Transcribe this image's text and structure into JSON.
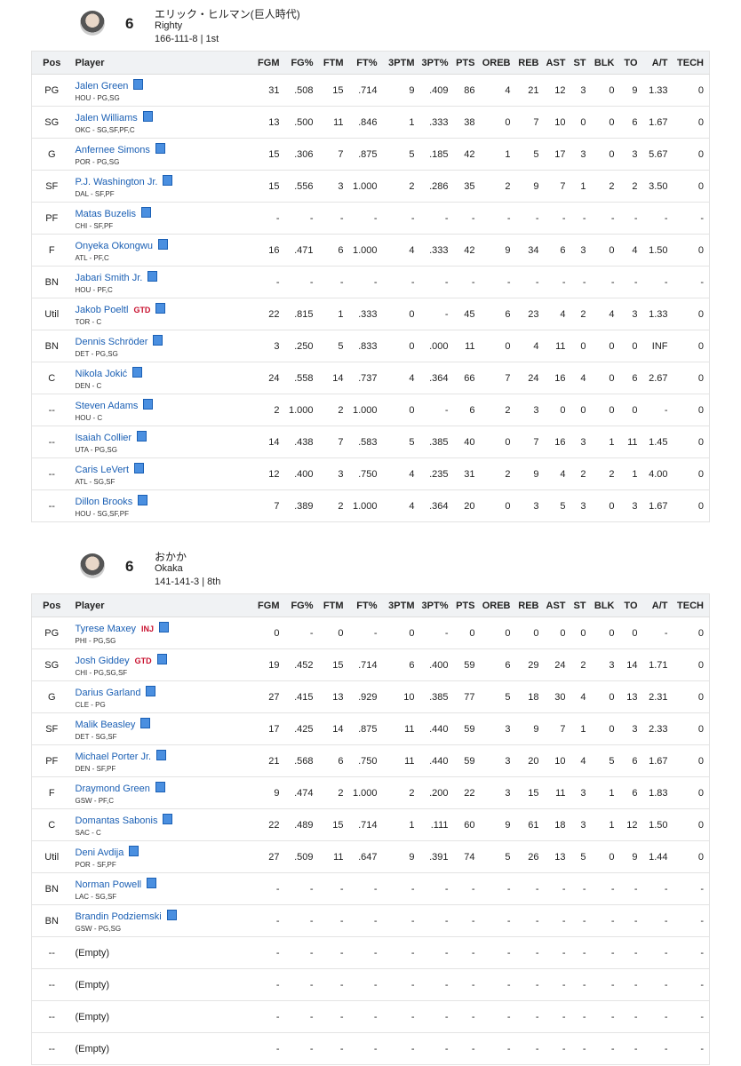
{
  "columns": [
    "Pos",
    "Player",
    "FGM",
    "FG%",
    "FTM",
    "FT%",
    "3PTM",
    "3PT%",
    "PTS",
    "OREB",
    "REB",
    "AST",
    "ST",
    "BLK",
    "TO",
    "A/T",
    "TECH"
  ],
  "teams": [
    {
      "manager": "エリック・ヒルマン(巨人時代)",
      "score": 6,
      "team_name": "Righty",
      "record": "166-111-8 | 1st",
      "rows": [
        {
          "pos": "PG",
          "name": "Jalen Green",
          "info": "HOU - PG,SG",
          "stats": [
            "31",
            ".508",
            "15",
            ".714",
            "9",
            ".409",
            "86",
            "4",
            "21",
            "12",
            "3",
            "0",
            "9",
            "1.33",
            "0"
          ]
        },
        {
          "pos": "SG",
          "name": "Jalen Williams",
          "info": "OKC - SG,SF,PF,C",
          "stats": [
            "13",
            ".500",
            "11",
            ".846",
            "1",
            ".333",
            "38",
            "0",
            "7",
            "10",
            "0",
            "0",
            "6",
            "1.67",
            "0"
          ]
        },
        {
          "pos": "G",
          "name": "Anfernee Simons",
          "info": "POR - PG,SG",
          "stats": [
            "15",
            ".306",
            "7",
            ".875",
            "5",
            ".185",
            "42",
            "1",
            "5",
            "17",
            "3",
            "0",
            "3",
            "5.67",
            "0"
          ]
        },
        {
          "pos": "SF",
          "name": "P.J. Washington Jr.",
          "info": "DAL - SF,PF",
          "stats": [
            "15",
            ".556",
            "3",
            "1.000",
            "2",
            ".286",
            "35",
            "2",
            "9",
            "7",
            "1",
            "2",
            "2",
            "3.50",
            "0"
          ]
        },
        {
          "pos": "PF",
          "name": "Matas Buzelis",
          "info": "CHI - SF,PF",
          "stats": [
            "-",
            "-",
            "-",
            "-",
            "-",
            "-",
            "-",
            "-",
            "-",
            "-",
            "-",
            "-",
            "-",
            "-",
            "-"
          ]
        },
        {
          "pos": "F",
          "name": "Onyeka Okongwu",
          "info": "ATL - PF,C",
          "stats": [
            "16",
            ".471",
            "6",
            "1.000",
            "4",
            ".333",
            "42",
            "9",
            "34",
            "6",
            "3",
            "0",
            "4",
            "1.50",
            "0"
          ]
        },
        {
          "pos": "BN",
          "name": "Jabari Smith Jr.",
          "info": "HOU - PF,C",
          "stats": [
            "-",
            "-",
            "-",
            "-",
            "-",
            "-",
            "-",
            "-",
            "-",
            "-",
            "-",
            "-",
            "-",
            "-",
            "-"
          ]
        },
        {
          "pos": "Util",
          "name": "Jakob Poeltl",
          "status": "GTD",
          "info": "TOR - C",
          "stats": [
            "22",
            ".815",
            "1",
            ".333",
            "0",
            "-",
            "45",
            "6",
            "23",
            "4",
            "2",
            "4",
            "3",
            "1.33",
            "0"
          ]
        },
        {
          "pos": "BN",
          "name": "Dennis Schröder",
          "info": "DET - PG,SG",
          "stats": [
            "3",
            ".250",
            "5",
            ".833",
            "0",
            ".000",
            "11",
            "0",
            "4",
            "11",
            "0",
            "0",
            "0",
            "INF",
            "0"
          ]
        },
        {
          "pos": "C",
          "name": "Nikola Jokić",
          "info": "DEN - C",
          "stats": [
            "24",
            ".558",
            "14",
            ".737",
            "4",
            ".364",
            "66",
            "7",
            "24",
            "16",
            "4",
            "0",
            "6",
            "2.67",
            "0"
          ]
        },
        {
          "pos": "--",
          "name": "Steven Adams",
          "info": "HOU - C",
          "stats": [
            "2",
            "1.000",
            "2",
            "1.000",
            "0",
            "-",
            "6",
            "2",
            "3",
            "0",
            "0",
            "0",
            "0",
            "-",
            "0"
          ]
        },
        {
          "pos": "--",
          "name": "Isaiah Collier",
          "info": "UTA - PG,SG",
          "stats": [
            "14",
            ".438",
            "7",
            ".583",
            "5",
            ".385",
            "40",
            "0",
            "7",
            "16",
            "3",
            "1",
            "11",
            "1.45",
            "0"
          ]
        },
        {
          "pos": "--",
          "name": "Caris LeVert",
          "info": "ATL - SG,SF",
          "stats": [
            "12",
            ".400",
            "3",
            ".750",
            "4",
            ".235",
            "31",
            "2",
            "9",
            "4",
            "2",
            "2",
            "1",
            "4.00",
            "0"
          ]
        },
        {
          "pos": "--",
          "name": "Dillon Brooks",
          "info": "HOU - SG,SF,PF",
          "stats": [
            "7",
            ".389",
            "2",
            "1.000",
            "4",
            ".364",
            "20",
            "0",
            "3",
            "5",
            "3",
            "0",
            "3",
            "1.67",
            "0"
          ]
        }
      ]
    },
    {
      "manager": "おかか",
      "score": 6,
      "team_name": "Okaka",
      "record": "141-141-3 | 8th",
      "rows": [
        {
          "pos": "PG",
          "name": "Tyrese Maxey",
          "status": "INJ",
          "info": "PHI - PG,SG",
          "stats": [
            "0",
            "-",
            "0",
            "-",
            "0",
            "-",
            "0",
            "0",
            "0",
            "0",
            "0",
            "0",
            "0",
            "-",
            "0"
          ]
        },
        {
          "pos": "SG",
          "name": "Josh Giddey",
          "status": "GTD",
          "info": "CHI - PG,SG,SF",
          "stats": [
            "19",
            ".452",
            "15",
            ".714",
            "6",
            ".400",
            "59",
            "6",
            "29",
            "24",
            "2",
            "3",
            "14",
            "1.71",
            "0"
          ]
        },
        {
          "pos": "G",
          "name": "Darius Garland",
          "info": "CLE - PG",
          "stats": [
            "27",
            ".415",
            "13",
            ".929",
            "10",
            ".385",
            "77",
            "5",
            "18",
            "30",
            "4",
            "0",
            "13",
            "2.31",
            "0"
          ]
        },
        {
          "pos": "SF",
          "name": "Malik Beasley",
          "info": "DET - SG,SF",
          "stats": [
            "17",
            ".425",
            "14",
            ".875",
            "11",
            ".440",
            "59",
            "3",
            "9",
            "7",
            "1",
            "0",
            "3",
            "2.33",
            "0"
          ]
        },
        {
          "pos": "PF",
          "name": "Michael Porter Jr.",
          "info": "DEN - SF,PF",
          "stats": [
            "21",
            ".568",
            "6",
            ".750",
            "11",
            ".440",
            "59",
            "3",
            "20",
            "10",
            "4",
            "5",
            "6",
            "1.67",
            "0"
          ]
        },
        {
          "pos": "F",
          "name": "Draymond Green",
          "info": "GSW - PF,C",
          "stats": [
            "9",
            ".474",
            "2",
            "1.000",
            "2",
            ".200",
            "22",
            "3",
            "15",
            "11",
            "3",
            "1",
            "6",
            "1.83",
            "0"
          ]
        },
        {
          "pos": "C",
          "name": "Domantas Sabonis",
          "info": "SAC - C",
          "stats": [
            "22",
            ".489",
            "15",
            ".714",
            "1",
            ".111",
            "60",
            "9",
            "61",
            "18",
            "3",
            "1",
            "12",
            "1.50",
            "0"
          ]
        },
        {
          "pos": "Util",
          "name": "Deni Avdija",
          "info": "POR - SF,PF",
          "stats": [
            "27",
            ".509",
            "11",
            ".647",
            "9",
            ".391",
            "74",
            "5",
            "26",
            "13",
            "5",
            "0",
            "9",
            "1.44",
            "0"
          ]
        },
        {
          "pos": "BN",
          "name": "Norman Powell",
          "info": "LAC - SG,SF",
          "stats": [
            "-",
            "-",
            "-",
            "-",
            "-",
            "-",
            "-",
            "-",
            "-",
            "-",
            "-",
            "-",
            "-",
            "-",
            "-"
          ]
        },
        {
          "pos": "BN",
          "name": "Brandin Podziemski",
          "info": "GSW - PG,SG",
          "stats": [
            "-",
            "-",
            "-",
            "-",
            "-",
            "-",
            "-",
            "-",
            "-",
            "-",
            "-",
            "-",
            "-",
            "-",
            "-"
          ]
        },
        {
          "pos": "--",
          "name": "(Empty)",
          "stats": [
            "-",
            "-",
            "-",
            "-",
            "-",
            "-",
            "-",
            "-",
            "-",
            "-",
            "-",
            "-",
            "-",
            "-",
            "-"
          ]
        },
        {
          "pos": "--",
          "name": "(Empty)",
          "stats": [
            "-",
            "-",
            "-",
            "-",
            "-",
            "-",
            "-",
            "-",
            "-",
            "-",
            "-",
            "-",
            "-",
            "-",
            "-"
          ]
        },
        {
          "pos": "--",
          "name": "(Empty)",
          "stats": [
            "-",
            "-",
            "-",
            "-",
            "-",
            "-",
            "-",
            "-",
            "-",
            "-",
            "-",
            "-",
            "-",
            "-",
            "-"
          ]
        },
        {
          "pos": "--",
          "name": "(Empty)",
          "stats": [
            "-",
            "-",
            "-",
            "-",
            "-",
            "-",
            "-",
            "-",
            "-",
            "-",
            "-",
            "-",
            "-",
            "-",
            "-"
          ]
        }
      ]
    }
  ]
}
